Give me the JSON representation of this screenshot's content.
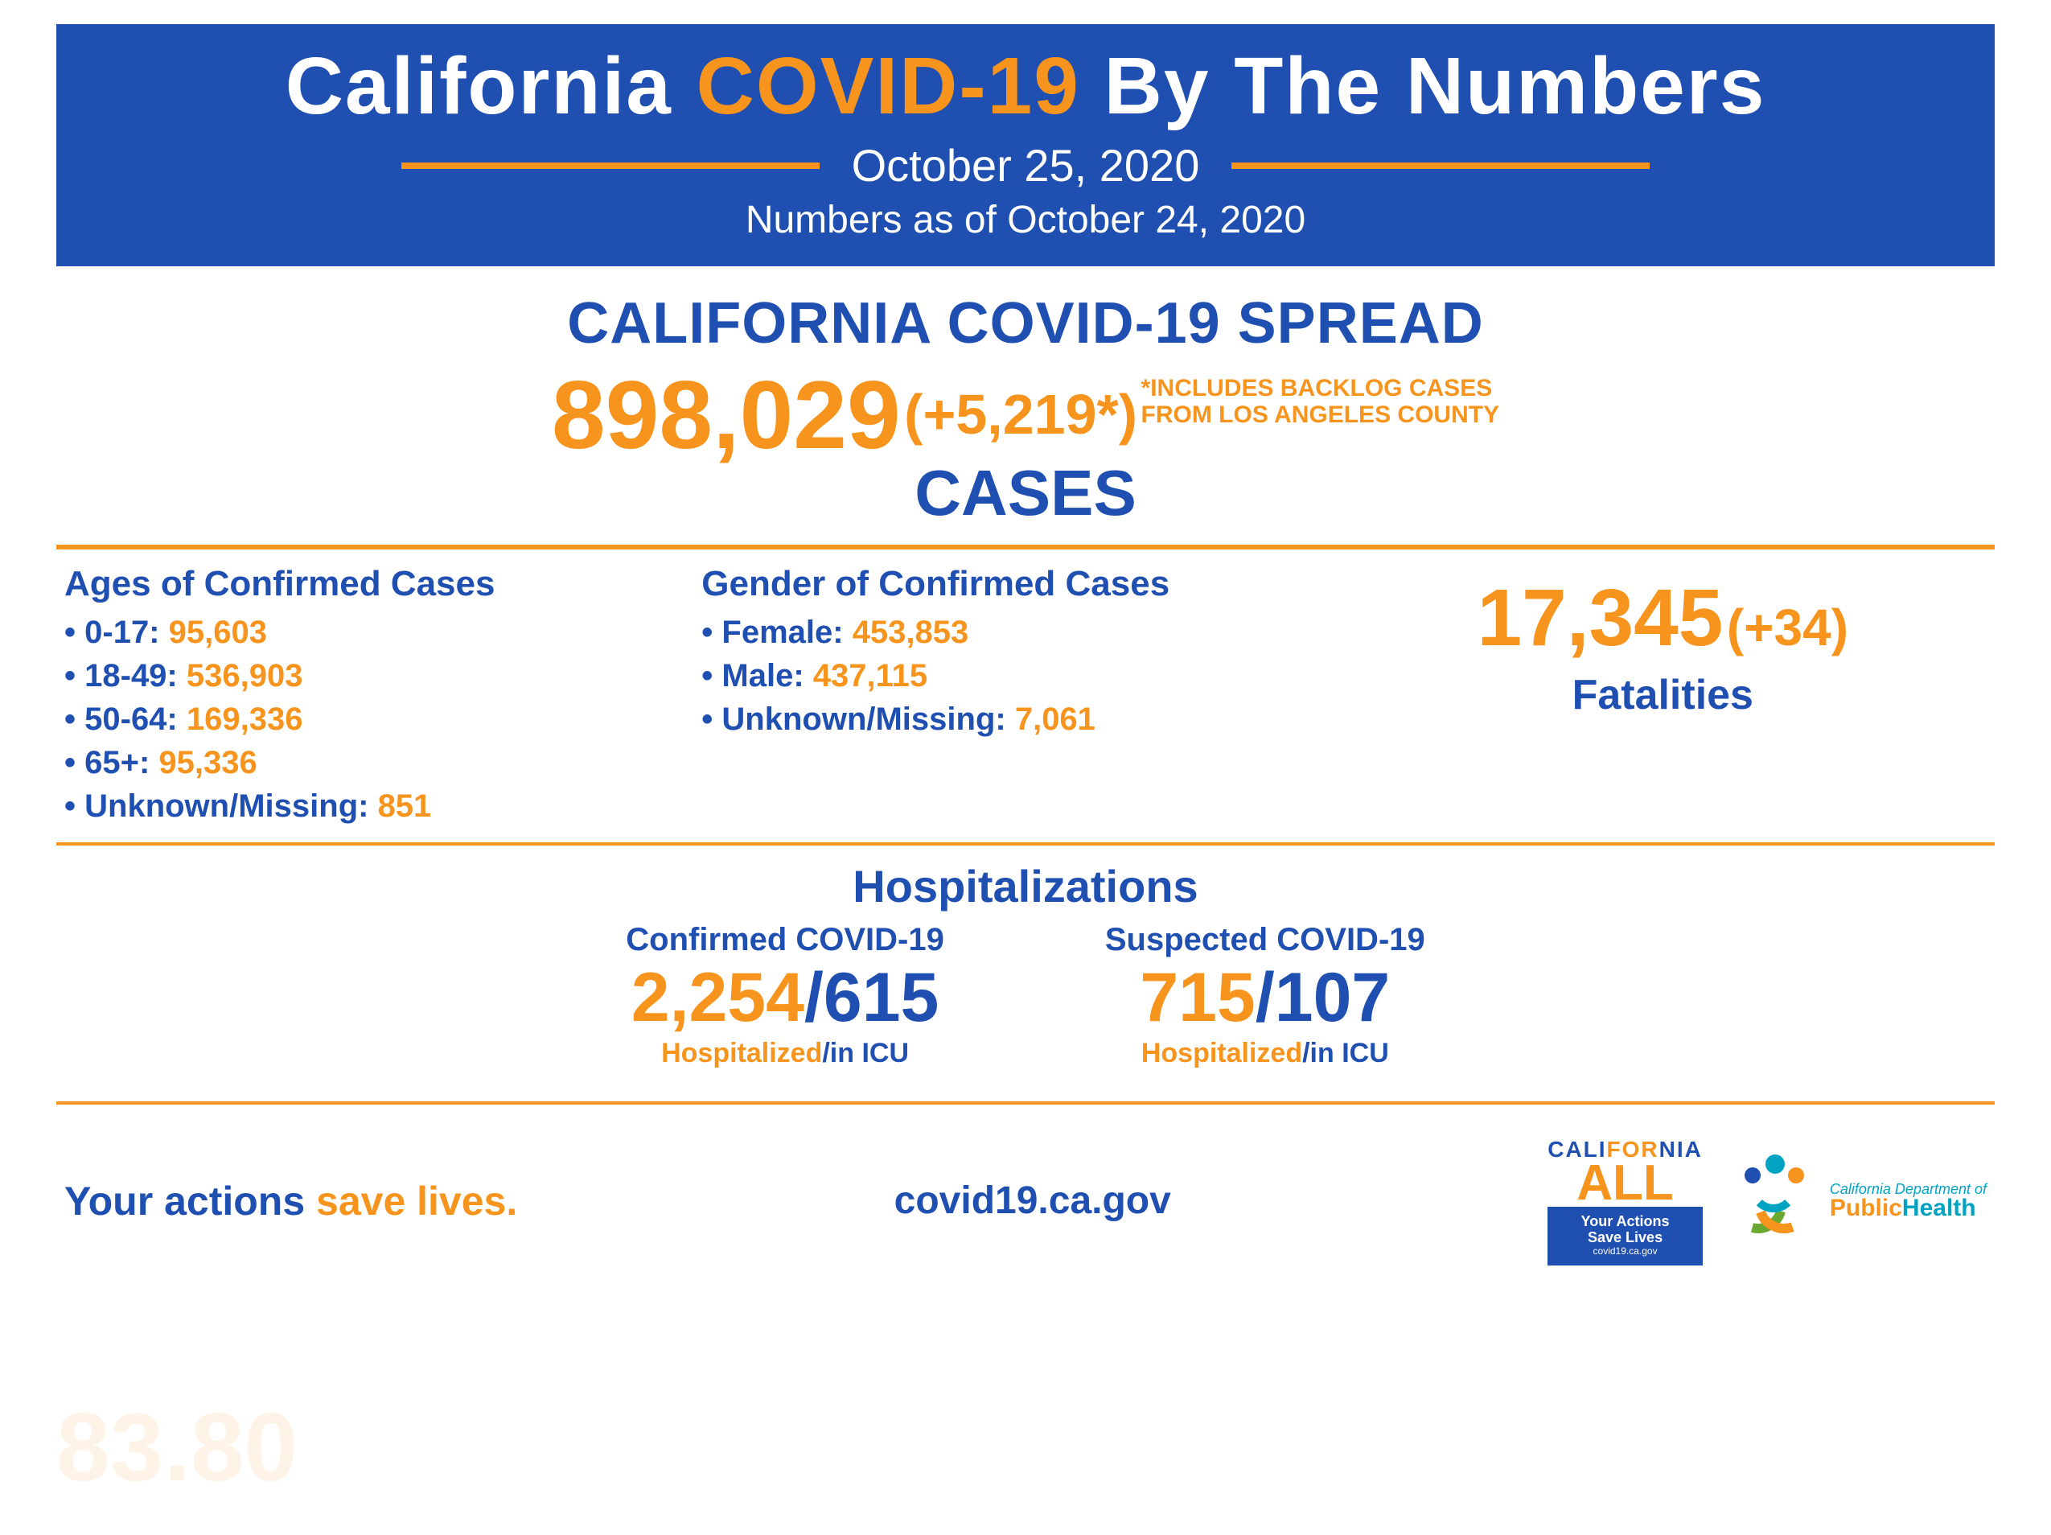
{
  "colors": {
    "blue": "#1f4fb0",
    "orange": "#f7941d",
    "white": "#ffffff",
    "teal": "#00a3c2",
    "green": "#6aa832"
  },
  "header": {
    "title_pre": "California ",
    "title_accent": "COVID-19",
    "title_post": " By The Numbers",
    "date": "October 25, 2020",
    "asof": "Numbers as of October 24, 2020"
  },
  "spread": {
    "heading": "CALIFORNIA COVID-19 SPREAD",
    "total": "898,029",
    "delta": "(+5,219*)",
    "note_l1": "*INCLUDES BACKLOG CASES",
    "note_l2": "FROM LOS ANGELES COUNTY",
    "label": "CASES"
  },
  "ages": {
    "title": "Ages of Confirmed Cases",
    "items": [
      {
        "label": "0-17:",
        "value": "95,603"
      },
      {
        "label": "18-49:",
        "value": "536,903"
      },
      {
        "label": "50-64:",
        "value": "169,336"
      },
      {
        "label": "65+:",
        "value": "95,336"
      },
      {
        "label": "Unknown/Missing:",
        "value": "851"
      }
    ]
  },
  "gender": {
    "title": "Gender of Confirmed Cases",
    "items": [
      {
        "label": "Female:",
        "value": "453,853"
      },
      {
        "label": "Male:",
        "value": "437,115"
      },
      {
        "label": "Unknown/Missing:",
        "value": "7,061"
      }
    ]
  },
  "fatalities": {
    "total": "17,345",
    "delta": "(+34)",
    "label": "Fatalities"
  },
  "hospitalizations": {
    "heading": "Hospitalizations",
    "confirmed": {
      "title": "Confirmed COVID-19",
      "hospitalized": "2,254",
      "icu": "615"
    },
    "suspected": {
      "title": "Suspected COVID-19",
      "hospitalized": "715",
      "icu": "107"
    },
    "caption_hosp": "Hospitalized",
    "caption_sep": "/",
    "caption_icu": "in ICU"
  },
  "footer": {
    "tagline_a": "Your actions ",
    "tagline_b": "save lives.",
    "url": "covid19.ca.gov",
    "logo_all": {
      "top_a": "CALI",
      "top_b": "FOR",
      "top_c": "NIA",
      "main": "ALL",
      "box_l1": "Your Actions",
      "box_l2": "Save Lives",
      "box_l3": "covid19.ca.gov"
    },
    "logo_cdph": {
      "line1": "California Department of",
      "line2a": "Public",
      "line2b": "Health"
    }
  },
  "ghost": "83.80"
}
